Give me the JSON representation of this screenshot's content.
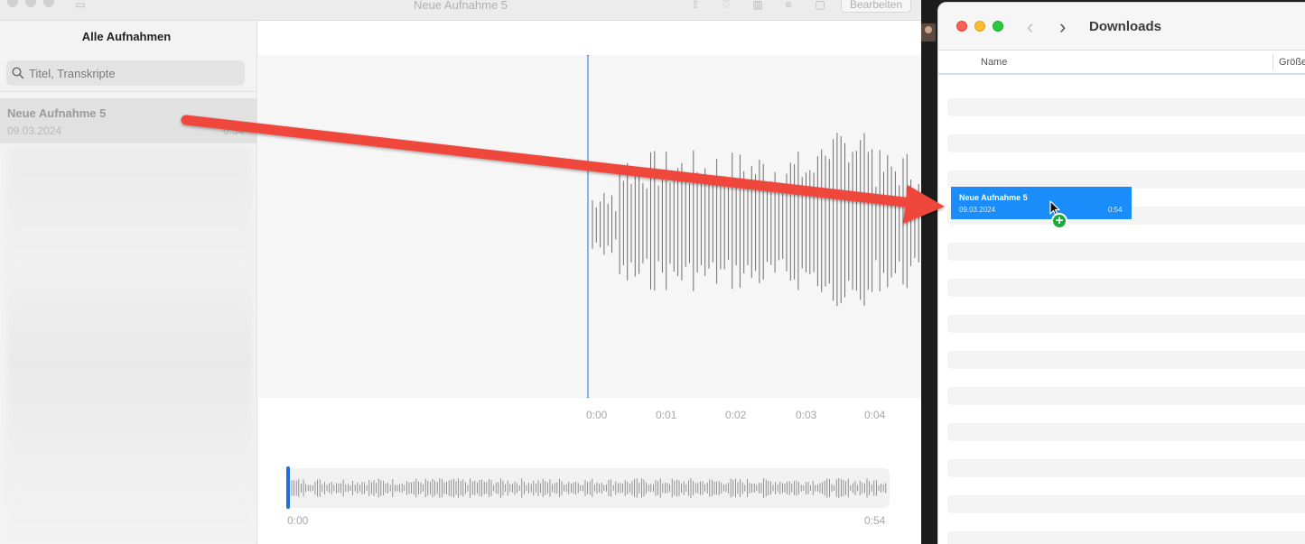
{
  "voice_memos": {
    "window_title": "Neue Aufnahme 5",
    "toolbar": {
      "edit_label": "Bearbeiten",
      "icons": [
        "sidebar-icon",
        "share-icon",
        "favorite-icon",
        "trash-icon",
        "settings-icon",
        "transcript-icon"
      ]
    },
    "sidebar": {
      "header": "Alle Aufnahmen",
      "search_placeholder": "Titel, Transkripte",
      "recordings": [
        {
          "title": "Neue Aufnahme 5",
          "date": "09.03.2024",
          "duration": "0:54"
        }
      ]
    },
    "timeline": {
      "ticks": [
        "0:00",
        "0:01",
        "0:02",
        "0:03",
        "0:04"
      ]
    },
    "overview": {
      "start": "0:00",
      "end": "0:54"
    }
  },
  "finder": {
    "title": "Downloads",
    "columns": {
      "name": "Name",
      "size": "Größe"
    }
  },
  "drag_item": {
    "title": "Neue Aufnahme 5",
    "date": "09.03.2024",
    "duration": "0:54"
  },
  "colors": {
    "accent": "#1d6fe0",
    "drag_highlight": "#1a8dfa",
    "arrow": "#f0463e",
    "add_badge": "#1aaa3c"
  }
}
